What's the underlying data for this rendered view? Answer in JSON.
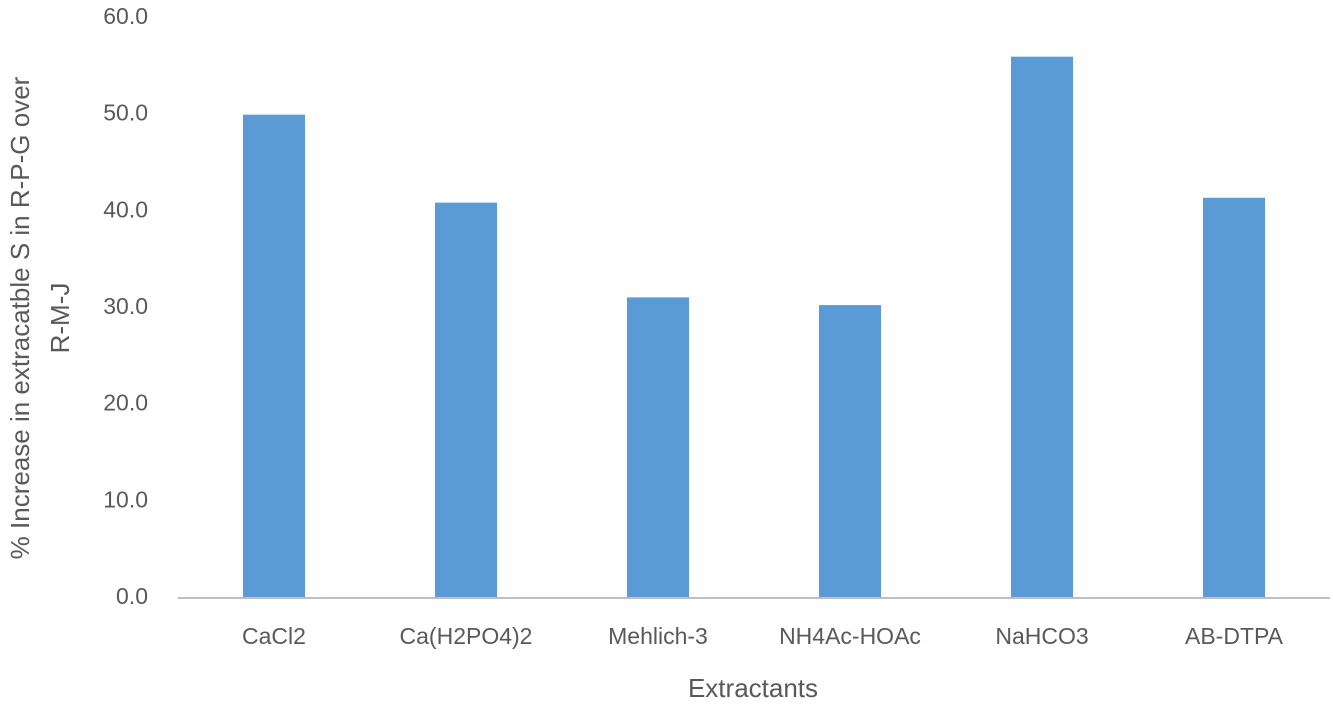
{
  "chart_data": {
    "type": "bar",
    "categories": [
      "CaCl2",
      "Ca(H2PO4)2",
      "Mehlich-3",
      "NH4Ac-HOAc",
      "NaHCO3",
      "AB-DTPA"
    ],
    "values": [
      50.0,
      40.9,
      31.1,
      30.3,
      56.0,
      41.4
    ],
    "color": "#5b9bd5",
    "xlabel": "Extractants",
    "ylabel": [
      "% Increase in extracatble S in R-P-G over",
      "R-M-J"
    ],
    "ylim": [
      0,
      60
    ],
    "yticks": [
      {
        "value": 0,
        "label": "0.0"
      },
      {
        "value": 10,
        "label": "10.0"
      },
      {
        "value": 20,
        "label": "20.0"
      },
      {
        "value": 30,
        "label": "30.0"
      },
      {
        "value": 40,
        "label": "40.0"
      },
      {
        "value": 50,
        "label": "50.0"
      },
      {
        "value": 60,
        "label": "60.0"
      }
    ],
    "grid": false
  }
}
